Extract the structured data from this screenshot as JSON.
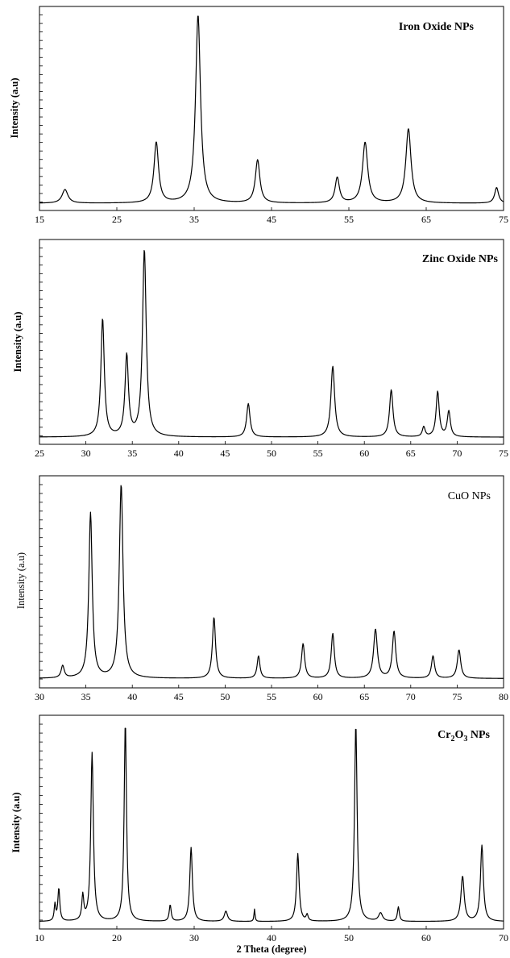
{
  "figure": {
    "xlabel": "2 Theta (degree)"
  },
  "chart_data": [
    {
      "type": "line",
      "title": "Iron Oxide NPs",
      "xlabel": "",
      "ylabel": "Intensity (a.u)",
      "xlim": [
        15,
        75
      ],
      "ylim": [
        0,
        100
      ],
      "xticks": [
        15,
        25,
        35,
        45,
        55,
        65,
        75
      ],
      "grid": false,
      "baseline": 2,
      "peaks": [
        {
          "x": 18.3,
          "y": 7,
          "w": 0.45
        },
        {
          "x": 30.1,
          "y": 31,
          "w": 0.35
        },
        {
          "x": 35.5,
          "y": 96,
          "w": 0.38
        },
        {
          "x": 43.2,
          "y": 22,
          "w": 0.35
        },
        {
          "x": 53.5,
          "y": 13,
          "w": 0.33
        },
        {
          "x": 57.1,
          "y": 31,
          "w": 0.4
        },
        {
          "x": 62.7,
          "y": 38,
          "w": 0.4
        },
        {
          "x": 74.1,
          "y": 8,
          "w": 0.3
        }
      ]
    },
    {
      "type": "line",
      "title": "Zinc Oxide NPs",
      "xlabel": "",
      "ylabel": "Intensity (a.u)",
      "xlim": [
        25,
        75
      ],
      "ylim": [
        0,
        100
      ],
      "xticks": [
        25,
        30,
        35,
        40,
        45,
        50,
        55,
        60,
        65,
        70,
        75
      ],
      "grid": false,
      "baseline": 2,
      "peaks": [
        {
          "x": 31.8,
          "y": 60,
          "w": 0.22
        },
        {
          "x": 34.4,
          "y": 41,
          "w": 0.22
        },
        {
          "x": 36.3,
          "y": 95,
          "w": 0.24
        },
        {
          "x": 47.5,
          "y": 17,
          "w": 0.22
        },
        {
          "x": 56.6,
          "y": 36,
          "w": 0.24
        },
        {
          "x": 62.9,
          "y": 24,
          "w": 0.22
        },
        {
          "x": 66.4,
          "y": 5,
          "w": 0.18
        },
        {
          "x": 67.9,
          "y": 23,
          "w": 0.2
        },
        {
          "x": 69.1,
          "y": 13,
          "w": 0.2
        }
      ]
    },
    {
      "type": "line",
      "title": "CuO NPs",
      "xlabel": "",
      "ylabel": "Intensity (a.u)",
      "xlim": [
        30,
        80
      ],
      "ylim": [
        0,
        100
      ],
      "xticks": [
        30,
        35,
        40,
        45,
        50,
        55,
        60,
        65,
        70,
        75,
        80
      ],
      "grid": false,
      "baseline": 3,
      "peaks": [
        {
          "x": 32.5,
          "y": 6,
          "w": 0.2
        },
        {
          "x": 35.5,
          "y": 81,
          "w": 0.22
        },
        {
          "x": 38.8,
          "y": 95,
          "w": 0.24
        },
        {
          "x": 48.8,
          "y": 30,
          "w": 0.2
        },
        {
          "x": 53.6,
          "y": 11,
          "w": 0.18
        },
        {
          "x": 58.4,
          "y": 17,
          "w": 0.2
        },
        {
          "x": 61.6,
          "y": 22,
          "w": 0.2
        },
        {
          "x": 66.2,
          "y": 24,
          "w": 0.24
        },
        {
          "x": 68.2,
          "y": 23,
          "w": 0.22
        },
        {
          "x": 72.4,
          "y": 11,
          "w": 0.2
        },
        {
          "x": 75.2,
          "y": 14,
          "w": 0.22
        }
      ]
    },
    {
      "type": "line",
      "title_parts": [
        "Cr",
        "2",
        "O",
        "3",
        " NPs"
      ],
      "xlabel": "2 Theta (degree)",
      "ylabel": "Intensity (a.u)",
      "xlim": [
        10,
        70
      ],
      "ylim": [
        0,
        100
      ],
      "xticks": [
        10,
        20,
        30,
        40,
        50,
        60,
        70
      ],
      "grid": false,
      "baseline": 2,
      "peaks": [
        {
          "x": 12.0,
          "y": 8,
          "w": 0.12
        },
        {
          "x": 12.5,
          "y": 16,
          "w": 0.15
        },
        {
          "x": 15.6,
          "y": 12,
          "w": 0.15
        },
        {
          "x": 16.8,
          "y": 82,
          "w": 0.2
        },
        {
          "x": 21.1,
          "y": 97,
          "w": 0.18
        },
        {
          "x": 26.9,
          "y": 8,
          "w": 0.15
        },
        {
          "x": 29.6,
          "y": 36,
          "w": 0.2
        },
        {
          "x": 34.1,
          "y": 5,
          "w": 0.25
        },
        {
          "x": 37.8,
          "y": 6,
          "w": 0.08
        },
        {
          "x": 43.4,
          "y": 33,
          "w": 0.2
        },
        {
          "x": 44.6,
          "y": 3,
          "w": 0.15
        },
        {
          "x": 50.9,
          "y": 96,
          "w": 0.2
        },
        {
          "x": 54.1,
          "y": 4,
          "w": 0.3
        },
        {
          "x": 56.4,
          "y": 7,
          "w": 0.15
        },
        {
          "x": 64.7,
          "y": 22,
          "w": 0.25
        },
        {
          "x": 67.2,
          "y": 37,
          "w": 0.22
        }
      ]
    }
  ]
}
